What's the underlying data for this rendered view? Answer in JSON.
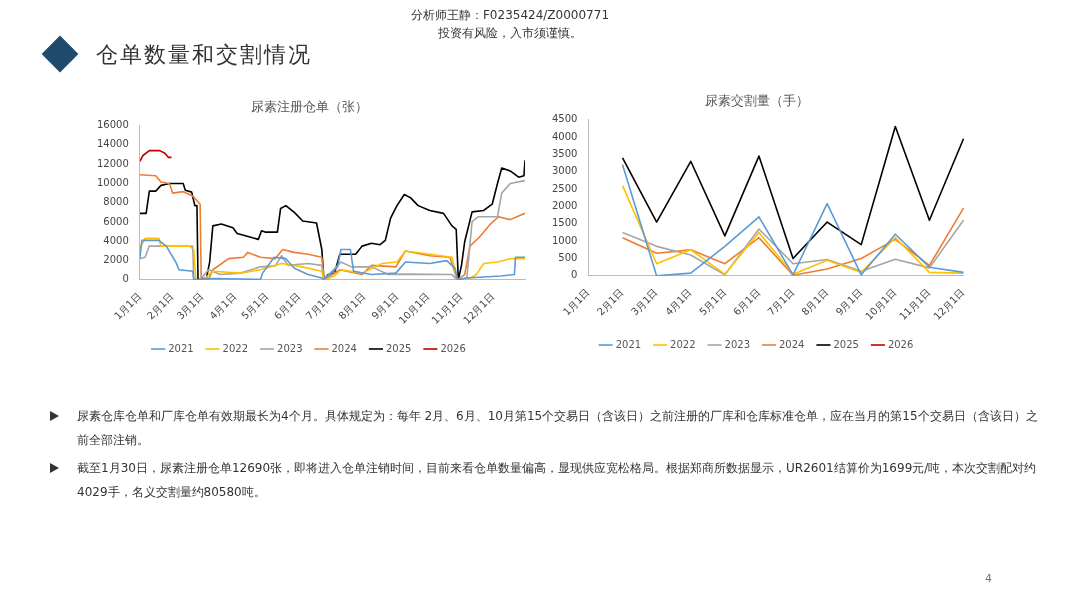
{
  "chart_data": [
    {
      "type": "other",
      "title": "仓单数量和交割情况",
      "annotations": [
        "分析师王静：F0235424/Z0000771",
        "投资有风险，入市须谨慎。",
        "尿素仓库仓单和厂库仓单有效期最长为4个月。具体规定为：每年 2月、6月、10月第15个交易日（含该日）之前注册的厂库和仓库标准仓单，应在当月的第15个交易日（含该日）之前全部注销。",
        "截至1月30日，尿素注册仓单12690张，即将进入仓单注销时间，目前来看仓单数量偏高，显现供应宽松格局。根据郑商所数据显示，UR2601结算价为1699元/吨，本次交割配对约4029手，名义交割量约80580吨。",
        "4"
      ]
    },
    {
      "type": "line",
      "title": "尿素注册仓单（张）",
      "xlim": [
        "--01-01",
        "--12-31"
      ],
      "xticks": [
        {
          "value": "--01-01",
          "label": "1月1日"
        },
        {
          "value": "--02-01",
          "label": "2月1日"
        },
        {
          "value": "--03-01",
          "label": "3月1日"
        },
        {
          "value": "--04-01",
          "label": "4月1日"
        },
        {
          "value": "--05-01",
          "label": "5月1日"
        },
        {
          "value": "--06-01",
          "label": "6月1日"
        },
        {
          "value": "--07-01",
          "label": "7月1日"
        },
        {
          "value": "--08-01",
          "label": "8月1日"
        },
        {
          "value": "--09-01",
          "label": "9月1日"
        },
        {
          "value": "--10-01",
          "label": "10月1日"
        },
        {
          "value": "--11-01",
          "label": "11月1日"
        },
        {
          "value": "--12-01",
          "label": "12月1日"
        }
      ],
      "ylim": [
        0,
        16000
      ],
      "yticks": [
        0,
        2000,
        4000,
        6000,
        8000,
        10000,
        12000,
        14000,
        16000
      ],
      "grid": false,
      "legend": "bottom",
      "marker": "none",
      "series": [
        {
          "name": "2021",
          "color": "#5b9bd5",
          "x": [
            "--01-01",
            "--01-03",
            "--01-19",
            "--01-26",
            "--02-04",
            "--02-07",
            "--02-20",
            "--02-21",
            "--03-11",
            "--04-25",
            "--04-27",
            "--05-08",
            "--05-19",
            "--05-27",
            "--06-09",
            "--06-22",
            "--06-24",
            "--07-07",
            "--07-10",
            "--07-19",
            "--07-22",
            "--08-08",
            "--08-31",
            "--09-09",
            "--10-02",
            "--10-18",
            "--10-26",
            "--10-28",
            "--11-06",
            "--12-08",
            "--12-21",
            "--12-22",
            "--12-31"
          ],
          "values": [
            2200,
            4100,
            4100,
            3500,
            1850,
            1050,
            900,
            0,
            150,
            50,
            700,
            2350,
            2200,
            1200,
            550,
            200,
            0,
            1350,
            3150,
            3150,
            900,
            550,
            700,
            1850,
            1700,
            2000,
            1200,
            0,
            200,
            400,
            550,
            2350,
            2350
          ]
        },
        {
          "name": "2022",
          "color": "#ffc000",
          "x": [
            "--01-01",
            "--01-06",
            "--01-19",
            "--01-21",
            "--02-17",
            "--02-21",
            "--02-23",
            "--03-02",
            "--03-11",
            "--04-06",
            "--04-25",
            "--05-15",
            "--06-03",
            "--06-22",
            "--06-24",
            "--07-04",
            "--07-10",
            "--07-30",
            "--08-18",
            "--09-01",
            "--09-09",
            "--10-02",
            "--10-23",
            "--10-28",
            "--11-06",
            "--11-15",
            "--11-22",
            "--12-05",
            "--12-17",
            "--12-31"
          ],
          "values": [
            3300,
            4300,
            4300,
            3500,
            3500,
            3150,
            0,
            0,
            900,
            700,
            1050,
            1700,
            1350,
            900,
            0,
            400,
            1050,
            700,
            1700,
            1850,
            3000,
            2650,
            2350,
            0,
            0,
            550,
            1700,
            1850,
            2200,
            2200
          ]
        },
        {
          "name": "2023",
          "color": "#a5a5a5",
          "x": [
            "--01-01",
            "--01-06",
            "--01-10",
            "--01-19",
            "--02-20",
            "--02-21",
            "--02-27",
            "--03-07",
            "--03-18",
            "--04-06",
            "--04-25",
            "--05-09",
            "--05-15",
            "--05-21",
            "--06-09",
            "--06-22",
            "--06-24",
            "--07-10",
            "--07-20",
            "--08-08",
            "--08-24",
            "--09-06",
            "--10-23",
            "--10-28",
            "--11-06",
            "--11-11",
            "--11-17",
            "--12-05",
            "--12-09",
            "--12-17",
            "--12-31"
          ],
          "values": [
            2200,
            2350,
            3500,
            3500,
            3500,
            0,
            0,
            1050,
            550,
            700,
            1350,
            1450,
            2500,
            1500,
            1700,
            1500,
            0,
            1850,
            1350,
            1350,
            550,
            600,
            550,
            0,
            200,
            6050,
            6550,
            6550,
            9000,
            10000,
            10300
          ]
        },
        {
          "name": "2024",
          "color": "#ed7d31",
          "x": [
            "--01-01",
            "--01-16",
            "--01-21",
            "--01-29",
            "--02-01",
            "--02-11",
            "--02-20",
            "--02-27",
            "--02-28",
            "--03-07",
            "--03-11",
            "--03-26",
            "--04-09",
            "--04-13",
            "--04-25",
            "--05-09",
            "--05-16",
            "--05-27",
            "--06-09",
            "--06-22",
            "--06-24",
            "--07-09",
            "--07-30",
            "--08-08",
            "--08-31",
            "--09-09",
            "--10-02",
            "--10-21",
            "--10-28",
            "--11-04",
            "--11-09",
            "--11-18",
            "--11-28",
            "--12-06",
            "--12-17",
            "--12-31"
          ],
          "values": [
            10900,
            10800,
            10150,
            10000,
            9000,
            9150,
            8700,
            7850,
            0,
            50,
            1050,
            2200,
            2350,
            2850,
            2350,
            2200,
            3150,
            2850,
            2650,
            2350,
            0,
            1050,
            550,
            1500,
            1350,
            3000,
            2500,
            2350,
            0,
            550,
            3500,
            4450,
            5750,
            6550,
            6250,
            6900
          ]
        },
        {
          "name": "2025",
          "color": "#000000",
          "x": [
            "--01-01",
            "--01-07",
            "--01-10",
            "--01-16",
            "--01-21",
            "--01-29",
            "--02-11",
            "--02-13",
            "--02-19",
            "--02-22",
            "--02-24",
            "--02-25",
            "--03-05",
            "--03-08",
            "--03-11",
            "--03-19",
            "--03-30",
            "--04-03",
            "--04-15",
            "--04-23",
            "--04-26",
            "--04-30",
            "--05-11",
            "--05-14",
            "--05-19",
            "--05-27",
            "--06-04",
            "--06-17",
            "--06-22",
            "--06-24",
            "--06-28",
            "--07-04",
            "--07-09",
            "--07-24",
            "--07-30",
            "--08-08",
            "--08-16",
            "--08-21",
            "--08-26",
            "--09-01",
            "--09-08",
            "--09-14",
            "--09-21",
            "--10-02",
            "--10-15",
            "--10-23",
            "--10-27",
            "--10-29",
            "--11-01",
            "--11-04",
            "--11-11",
            "--11-22",
            "--11-30",
            "--12-05",
            "--12-09",
            "--12-17",
            "--12-25",
            "--12-30",
            "--12-31"
          ],
          "values": [
            6900,
            6900,
            9200,
            9200,
            9800,
            10000,
            10000,
            9300,
            9100,
            7700,
            7700,
            0,
            200,
            1850,
            5600,
            5800,
            5400,
            4800,
            4450,
            4200,
            5100,
            4950,
            4950,
            7400,
            7700,
            7000,
            6100,
            5900,
            3150,
            0,
            550,
            700,
            2650,
            2650,
            3500,
            3800,
            3650,
            4100,
            6400,
            7700,
            8850,
            8500,
            7700,
            7200,
            6900,
            5600,
            5250,
            0,
            1500,
            3950,
            7050,
            7200,
            7850,
            10000,
            11600,
            11300,
            10650,
            10800,
            12400
          ]
        },
        {
          "name": "2026",
          "color": "#c00000",
          "x": [
            "--01-01",
            "--01-04",
            "--01-10",
            "--01-20",
            "--01-25",
            "--01-28",
            "--01-31"
          ],
          "values": [
            12300,
            12900,
            13400,
            13400,
            13100,
            12700,
            12700
          ]
        }
      ]
    },
    {
      "type": "line",
      "title": "尿素交割量（手）",
      "categories": [
        "1月1日",
        "2月1日",
        "3月1日",
        "4月1日",
        "5月1日",
        "6月1日",
        "7月1日",
        "8月1日",
        "9月1日",
        "10月1日",
        "11月1日",
        "12月1日"
      ],
      "ylim": [
        0,
        4500
      ],
      "yticks": [
        0,
        500,
        1000,
        1500,
        2000,
        2500,
        3000,
        3500,
        4000,
        4500
      ],
      "grid": false,
      "legend": "bottom",
      "marker": "none",
      "series": [
        {
          "name": "2021",
          "color": "#5b9bd5",
          "values": [
            null,
            3200,
            0,
            80,
            850,
            1700,
            30,
            2080,
            30,
            1200,
            250,
            100
          ]
        },
        {
          "name": "2022",
          "color": "#ffc000",
          "values": [
            null,
            2600,
            350,
            750,
            50,
            1250,
            50,
            450,
            100,
            1100,
            100,
            80
          ]
        },
        {
          "name": "2023",
          "color": "#a5a5a5",
          "values": [
            null,
            1250,
            850,
            600,
            30,
            1350,
            350,
            470,
            130,
            480,
            230,
            1600
          ]
        },
        {
          "name": "2024",
          "color": "#ed7d31",
          "values": [
            null,
            1100,
            650,
            750,
            350,
            1100,
            20,
            200,
            500,
            1050,
            300,
            1950
          ]
        },
        {
          "name": "2025",
          "color": "#000000",
          "values": [
            null,
            3400,
            1550,
            3300,
            1150,
            3450,
            500,
            1550,
            900,
            4300,
            1600,
            3950
          ]
        },
        {
          "name": "2026",
          "color": "#c00000",
          "values": [
            null,
            null,
            null,
            null,
            null,
            null,
            null,
            null,
            null,
            null,
            null,
            null
          ]
        }
      ]
    }
  ]
}
